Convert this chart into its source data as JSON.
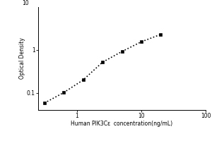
{
  "x_data": [
    0.313,
    0.625,
    1.25,
    2.5,
    5,
    10,
    20
  ],
  "y_data": [
    0.058,
    0.102,
    0.2,
    0.52,
    0.92,
    1.55,
    2.3
  ],
  "xlim": [
    0.25,
    100
  ],
  "ylim": [
    0.04,
    10
  ],
  "xlabel": "Human PIK3Cε  concentration(ng/mL)",
  "ylabel": "Optical Density",
  "marker": "s",
  "marker_color": "black",
  "marker_size": 3.5,
  "line_style": ":",
  "line_color": "black",
  "line_width": 1.2,
  "background_color": "#ffffff",
  "font_size_label": 5.5,
  "font_size_tick": 5.5,
  "top_tick_label": "10"
}
